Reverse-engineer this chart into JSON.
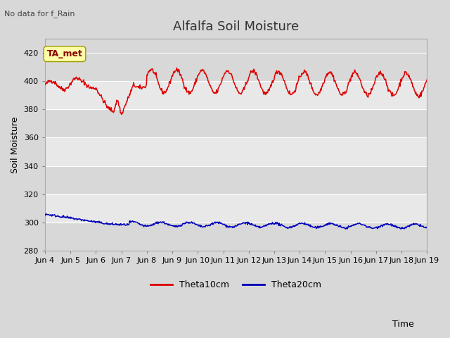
{
  "title": "Alfalfa Soil Moisture",
  "xlabel": "Time",
  "ylabel": "Soil Moisture",
  "top_left_text": "No data for f_Rain",
  "legend_label_text": "TA_met",
  "ylim": [
    280,
    430
  ],
  "yticks": [
    280,
    300,
    320,
    340,
    360,
    380,
    400,
    420
  ],
  "xtick_labels": [
    "Jun 4",
    "Jun 5",
    "Jun 6",
    "Jun 7",
    "Jun 8",
    "Jun 9",
    "Jun 10",
    "Jun 11",
    "Jun 12",
    "Jun 13",
    "Jun 14",
    "Jun 15",
    "Jun 16",
    "Jun 17",
    "Jun 18",
    "Jun 19"
  ],
  "fig_bg_color": "#d8d8d8",
  "plot_bg_color": "#d8d8d8",
  "band_light_color": "#e8e8e8",
  "band_dark_color": "#d8d8d8",
  "theta10_color": "#dd0000",
  "theta20_color": "#0000bb",
  "legend_theta10": "Theta10cm",
  "legend_theta20": "Theta20cm",
  "ta_met_box_color": "#ffffaa",
  "ta_met_text_color": "#880000",
  "title_fontsize": 13,
  "axis_label_fontsize": 9,
  "tick_fontsize": 8,
  "n_days": 15
}
